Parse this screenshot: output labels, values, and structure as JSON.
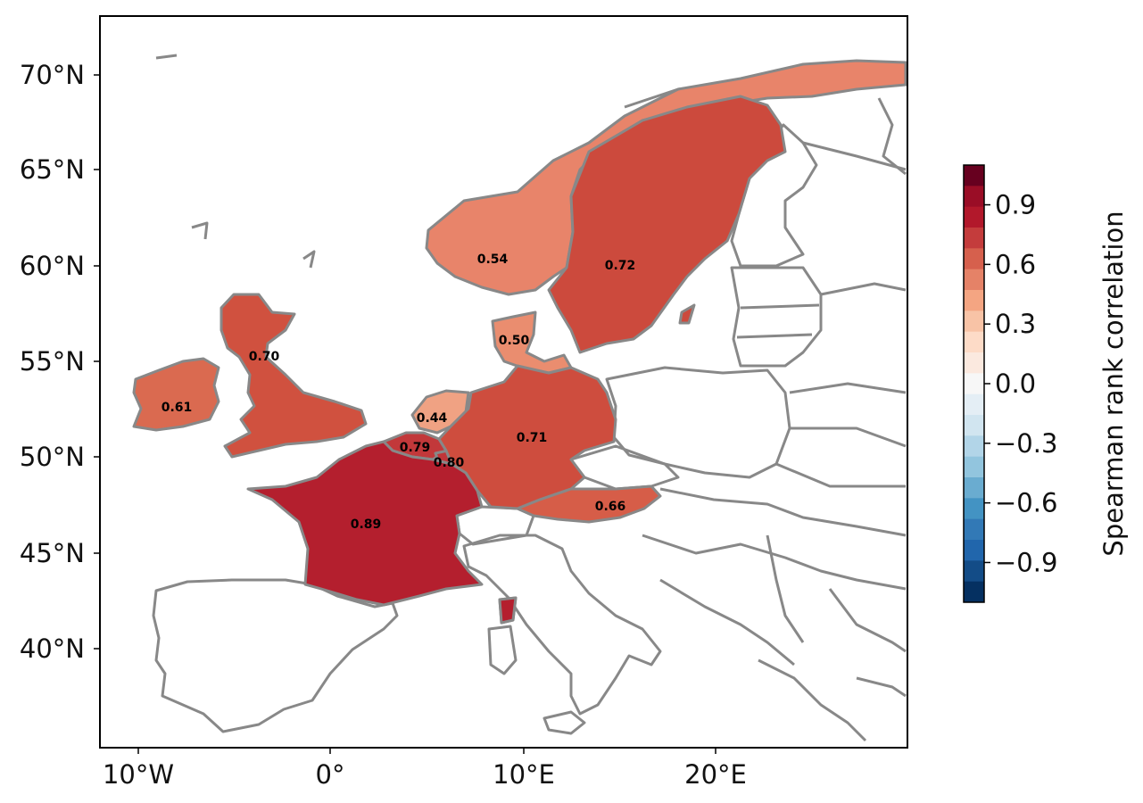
{
  "map": {
    "lat_ticks": [
      "70°N",
      "65°N",
      "60°N",
      "55°N",
      "50°N",
      "45°N",
      "40°N"
    ],
    "lon_ticks": [
      "10°W",
      "0°",
      "10°E",
      "20°E"
    ],
    "colors": {
      "border": "#888888",
      "ocean": "#ffffff"
    }
  },
  "regions": [
    {
      "label": "0.54",
      "value": 0.54,
      "color": "#e8846a"
    },
    {
      "label": "0.72",
      "value": 0.72,
      "color": "#cc4a3d"
    },
    {
      "label": "0.50",
      "value": 0.5,
      "color": "#ea8d6f"
    },
    {
      "label": "0.70",
      "value": 0.7,
      "color": "#d0513f"
    },
    {
      "label": "0.61",
      "value": 0.61,
      "color": "#da6a50"
    },
    {
      "label": "0.44",
      "value": 0.44,
      "color": "#f0a283"
    },
    {
      "label": "0.79",
      "value": 0.79,
      "color": "#c2383a"
    },
    {
      "label": "0.80",
      "value": 0.8,
      "color": "#c03539"
    },
    {
      "label": "0.71",
      "value": 0.71,
      "color": "#ce4d3e"
    },
    {
      "label": "0.66",
      "value": 0.66,
      "color": "#d65d48"
    },
    {
      "label": "0.89",
      "value": 0.89,
      "color": "#b41f2e"
    }
  ],
  "colorbar": {
    "title": "Spearman rank correlation",
    "ticks": [
      "0.9",
      "0.6",
      "0.3",
      "0.0",
      "−0.3",
      "−0.6",
      "−0.9"
    ],
    "range": [
      -1.1,
      1.1
    ],
    "colors_top_to_bottom": [
      "#67001f",
      "#9a0d26",
      "#b2182b",
      "#c43c3c",
      "#d6604d",
      "#e58267",
      "#f4a582",
      "#f8c3a6",
      "#fddbc7",
      "#fbe9df",
      "#f7f7f7",
      "#e4eef5",
      "#d1e5f0",
      "#b2d5e8",
      "#92c5de",
      "#6aacd0",
      "#4393c3",
      "#3279b6",
      "#2166ac",
      "#134c87",
      "#053061"
    ]
  }
}
